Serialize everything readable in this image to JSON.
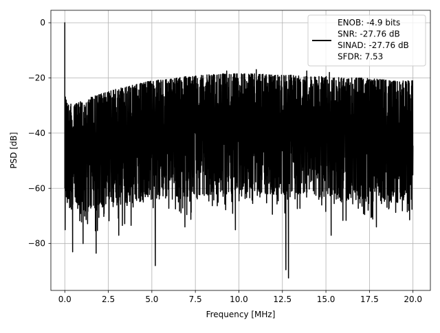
{
  "chart_data": {
    "type": "line",
    "xlabel": "Frequency [MHz]",
    "ylabel": "PSD [dB]",
    "xlim": [
      -0.8,
      21.0
    ],
    "ylim": [
      -97,
      4.5
    ],
    "xticks": [
      0.0,
      2.5,
      5.0,
      7.5,
      10.0,
      12.5,
      15.0,
      17.5,
      20.0
    ],
    "xtick_labels": [
      "0.0",
      "2.5",
      "5.0",
      "7.5",
      "10.0",
      "12.5",
      "15.0",
      "17.5",
      "20.0"
    ],
    "yticks": [
      0,
      -20,
      -40,
      -60,
      -80
    ],
    "ytick_labels": [
      "0",
      "−20",
      "−40",
      "−60",
      "−80"
    ],
    "grid": true,
    "legend_position": "top-right",
    "series_color": "#000000",
    "legend_lines": [
      "ENOB: -4.9 bits",
      "SNR: -27.76 dB",
      "SINAD: -27.76 dB",
      "SFDR: 7.53"
    ],
    "envelope": {
      "x": [
        0.0,
        0.2,
        0.5,
        1.0,
        2.0,
        3.0,
        4.0,
        5.0,
        6.0,
        7.0,
        8.0,
        9.0,
        10.0,
        11.0,
        12.0,
        13.0,
        14.0,
        15.0,
        16.0,
        17.0,
        18.0,
        19.0,
        20.0
      ],
      "upper": [
        -26,
        -29,
        -30,
        -28,
        -26,
        -24,
        -22.5,
        -21,
        -20.5,
        -19.5,
        -19,
        -18.5,
        -18.5,
        -18.5,
        -19,
        -19,
        -19.5,
        -19.5,
        -20,
        -20,
        -20.5,
        -21,
        -21
      ],
      "lower": [
        -60,
        -66,
        -68,
        -68,
        -67,
        -66,
        -65,
        -64,
        -63,
        -63,
        -62,
        -62,
        -62,
        -62,
        -62,
        -62,
        -63,
        -63,
        -64,
        -64,
        -65,
        -65,
        -66
      ]
    },
    "peaks": [
      {
        "x": 0.0,
        "y": 0.0
      },
      {
        "x": 0.02,
        "y": -75
      },
      {
        "x": 0.45,
        "y": -83
      },
      {
        "x": 1.05,
        "y": -80
      },
      {
        "x": 1.8,
        "y": -83.5
      },
      {
        "x": 3.1,
        "y": -77
      },
      {
        "x": 5.2,
        "y": -88
      },
      {
        "x": 6.9,
        "y": -74
      },
      {
        "x": 9.8,
        "y": -75
      },
      {
        "x": 12.7,
        "y": -89.5
      },
      {
        "x": 12.85,
        "y": -92.5
      },
      {
        "x": 15.3,
        "y": -77
      },
      {
        "x": 17.9,
        "y": -74
      }
    ],
    "spurs": [
      {
        "x": 9.3,
        "y": -17.5
      },
      {
        "x": 11.0,
        "y": -17
      },
      {
        "x": 13.9,
        "y": -17.5
      },
      {
        "x": 15.2,
        "y": -18
      }
    ]
  }
}
